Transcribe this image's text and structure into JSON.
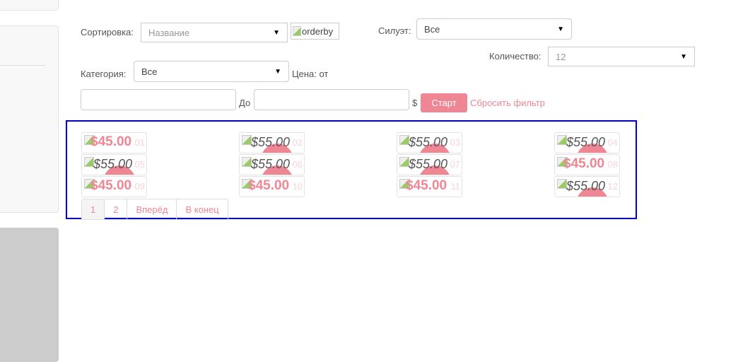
{
  "filters": {
    "sort_label": "Сортировка:",
    "sort_value": "Название",
    "orderby_alt": "orderby",
    "silhouette_label": "Силуэт:",
    "silhouette_value": "Все",
    "quantity_label": "Количество:",
    "quantity_value": "12",
    "category_label": "Категория:",
    "category_value": "Все",
    "price_from_label": "Цена: от",
    "price_to_label": "До",
    "currency": "$",
    "price_from_value": "",
    "price_to_value": "",
    "start_button": "Старт",
    "reset_link": "Сбросить фильтр"
  },
  "products": [
    {
      "num": "01",
      "price": "$45.00",
      "sale": true
    },
    {
      "num": "02",
      "price": "$55.00",
      "sale": false
    },
    {
      "num": "03",
      "price": "$55.00",
      "sale": false
    },
    {
      "num": "04",
      "price": "$55.00",
      "sale": false
    },
    {
      "num": "05",
      "price": "$55.00",
      "sale": false
    },
    {
      "num": "06",
      "price": "$55.00",
      "sale": false
    },
    {
      "num": "07",
      "price": "$55.00",
      "sale": false
    },
    {
      "num": "08",
      "price": "$45.00",
      "sale": true
    },
    {
      "num": "09",
      "price": "$45.00",
      "sale": true
    },
    {
      "num": "10",
      "price": "$45.00",
      "sale": true
    },
    {
      "num": "11",
      "price": "$45.00",
      "sale": true
    },
    {
      "num": "12",
      "price": "$55.00",
      "sale": false
    }
  ],
  "pagination": {
    "pages": [
      "1",
      "2"
    ],
    "current": "1",
    "next": "Вперёд",
    "last": "В конец"
  },
  "colors": {
    "accent": "#ee8694",
    "highlight_border": "#0000c8"
  }
}
